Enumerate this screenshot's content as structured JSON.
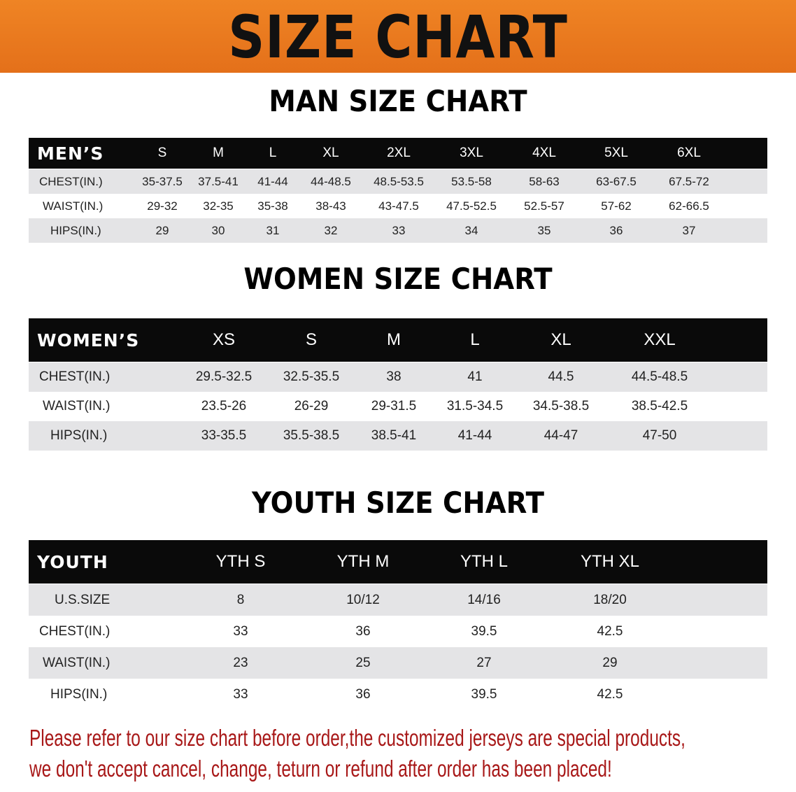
{
  "banner": {
    "title": "SIZE CHART",
    "color": "#e8761c"
  },
  "men": {
    "title": "MAN SIZE CHART",
    "header": "MEN’S",
    "sizes": [
      "S",
      "M",
      "L",
      "XL",
      "2XL",
      "3XL",
      "4XL",
      "5XL",
      "6XL"
    ],
    "rows": [
      {
        "label": "CHEST(IN.)",
        "values": [
          "35-37.5",
          "37.5-41",
          "41-44",
          "44-48.5",
          "48.5-53.5",
          "53.5-58",
          "58-63",
          "63-67.5",
          "67.5-72"
        ]
      },
      {
        "label": "WAIST(IN.)",
        "values": [
          "29-32",
          "32-35",
          "35-38",
          "38-43",
          "43-47.5",
          "47.5-52.5",
          "52.5-57",
          "57-62",
          "62-66.5"
        ]
      },
      {
        "label": "HIPS(IN.)",
        "values": [
          "29",
          "30",
          "31",
          "32",
          "33",
          "34",
          "35",
          "36",
          "37"
        ]
      }
    ]
  },
  "women": {
    "title": "WOMEN SIZE CHART",
    "header": "WOMEN’S",
    "sizes": [
      "XS",
      "S",
      "M",
      "L",
      "XL",
      "XXL"
    ],
    "rows": [
      {
        "label": "CHEST(IN.)",
        "values": [
          "29.5-32.5",
          "32.5-35.5",
          "38",
          "41",
          "44.5",
          "44.5-48.5"
        ]
      },
      {
        "label": "WAIST(IN.)",
        "values": [
          "23.5-26",
          "26-29",
          "29-31.5",
          "31.5-34.5",
          "34.5-38.5",
          "38.5-42.5"
        ]
      },
      {
        "label": "HIPS(IN.)",
        "values": [
          "33-35.5",
          "35.5-38.5",
          "38.5-41",
          "41-44",
          "44-47",
          "47-50"
        ]
      }
    ]
  },
  "youth": {
    "title": "YOUTH SIZE CHART",
    "header": "YOUTH",
    "sizes": [
      "YTH S",
      "YTH M",
      "YTH L",
      "YTH XL"
    ],
    "rows": [
      {
        "label": "U.S.SIZE",
        "values": [
          "8",
          "10/12",
          "14/16",
          "18/20"
        ]
      },
      {
        "label": "CHEST(IN.)",
        "values": [
          "33",
          "36",
          "39.5",
          "42.5"
        ]
      },
      {
        "label": "WAIST(IN.)",
        "values": [
          "23",
          "25",
          "27",
          "29"
        ]
      },
      {
        "label": "HIPS(IN.)",
        "values": [
          "33",
          "36",
          "39.5",
          "42.5"
        ]
      }
    ]
  },
  "notice": {
    "line1": "Please refer to our size chart before order,the customized jerseys are special products,",
    "line2": "we don't accept cancel, change, teturn or refund after order has been placed!",
    "color": "#a81818"
  }
}
